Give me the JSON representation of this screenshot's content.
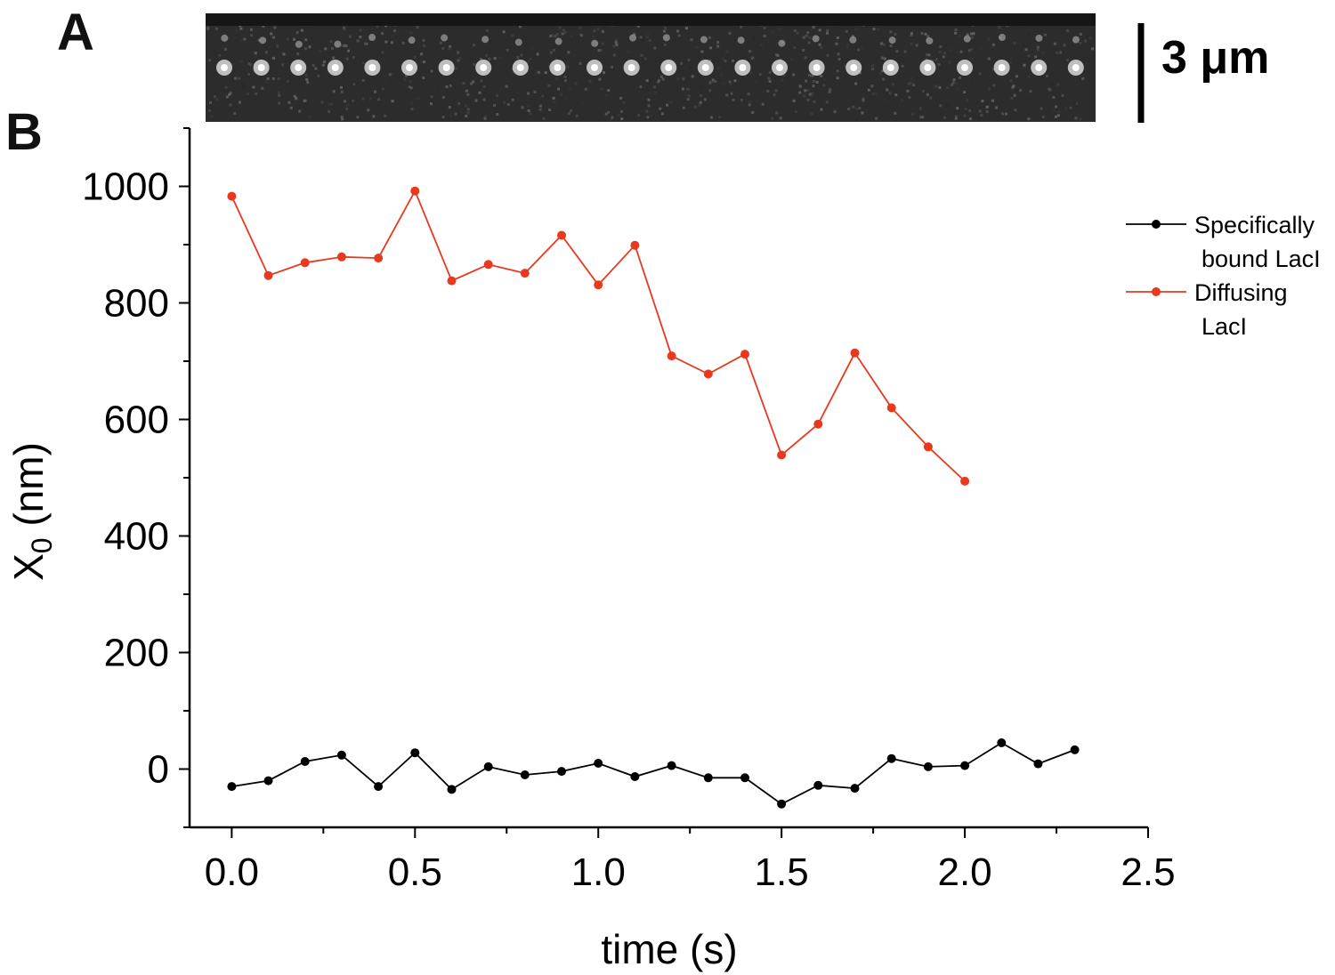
{
  "panels": {
    "a": "A",
    "b": "B"
  },
  "kymograph": {
    "scale_bar_label": "3 μm"
  },
  "chart_data": {
    "type": "line",
    "title": "",
    "xlabel": "time (s)",
    "ylabel_main": "X",
    "ylabel_sub": "0",
    "ylabel_unit": "(nm)",
    "xlim": [
      -0.115,
      2.5
    ],
    "ylim": [
      -100,
      1100
    ],
    "xticks": [
      0.0,
      0.5,
      1.0,
      1.5,
      2.0,
      2.5
    ],
    "xtick_labels": [
      "0.0",
      "0.5",
      "1.0",
      "1.5",
      "2.0",
      "2.5"
    ],
    "yticks": [
      0,
      200,
      400,
      600,
      800,
      1000
    ],
    "ytick_labels": [
      "0",
      "200",
      "400",
      "600",
      "800",
      "1000"
    ],
    "legend_position": "top-right",
    "series": [
      {
        "name": "Specifically bound LacI",
        "legend_lines": [
          "Specifically",
          "bound LacI"
        ],
        "color": "#000000",
        "x": [
          0.0,
          0.1,
          0.2,
          0.3,
          0.4,
          0.5,
          0.6,
          0.7,
          0.8,
          0.9,
          1.0,
          1.1,
          1.2,
          1.3,
          1.4,
          1.5,
          1.6,
          1.7,
          1.8,
          1.9,
          2.0,
          2.1,
          2.2,
          2.3
        ],
        "y": [
          -30,
          -20,
          13,
          24,
          -30,
          28,
          -35,
          4,
          -10,
          -4,
          10,
          -13,
          6,
          -15,
          -15,
          -60,
          -28,
          -33,
          18,
          4,
          6,
          45,
          9,
          33
        ]
      },
      {
        "name": "Diffusing LacI",
        "legend_lines": [
          "Diffusing",
          "LacI"
        ],
        "color": "#e8391e",
        "x": [
          0.0,
          0.1,
          0.2,
          0.3,
          0.4,
          0.5,
          0.6,
          0.7,
          0.8,
          0.9,
          1.0,
          1.1,
          1.2,
          1.3,
          1.4,
          1.5,
          1.6,
          1.7,
          1.8,
          1.9,
          2.0
        ],
        "y": [
          983,
          847,
          869,
          879,
          877,
          992,
          838,
          866,
          851,
          916,
          831,
          899,
          709,
          678,
          712,
          539,
          592,
          714,
          620,
          553,
          494
        ]
      }
    ]
  }
}
